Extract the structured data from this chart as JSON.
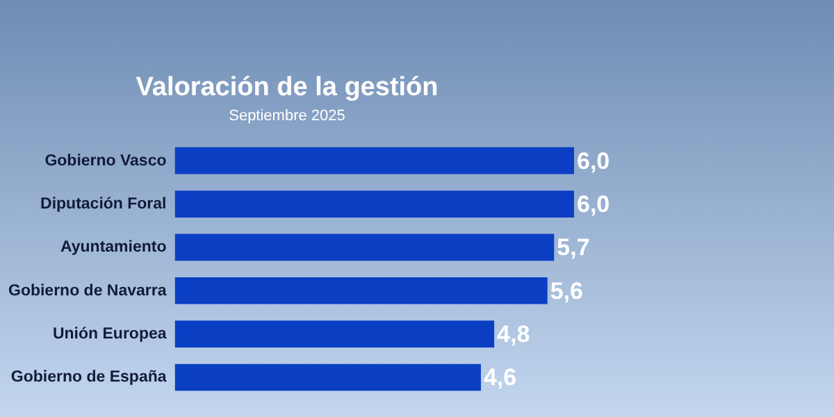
{
  "chart_data": {
    "type": "bar",
    "orientation": "horizontal",
    "title": "Valoración de la gestión",
    "subtitle": "Septiembre 2025",
    "categories": [
      "Gobierno Vasco",
      "Diputación Foral",
      "Ayuntamiento",
      "Gobierno de Navarra",
      "Unión Europea",
      "Gobierno de España"
    ],
    "values": [
      6.0,
      6.0,
      5.7,
      5.6,
      4.8,
      4.6
    ],
    "value_labels": [
      "6,0",
      "6,0",
      "5,7",
      "5,6",
      "4,8",
      "4,6"
    ],
    "color": "#0a3fc4"
  }
}
